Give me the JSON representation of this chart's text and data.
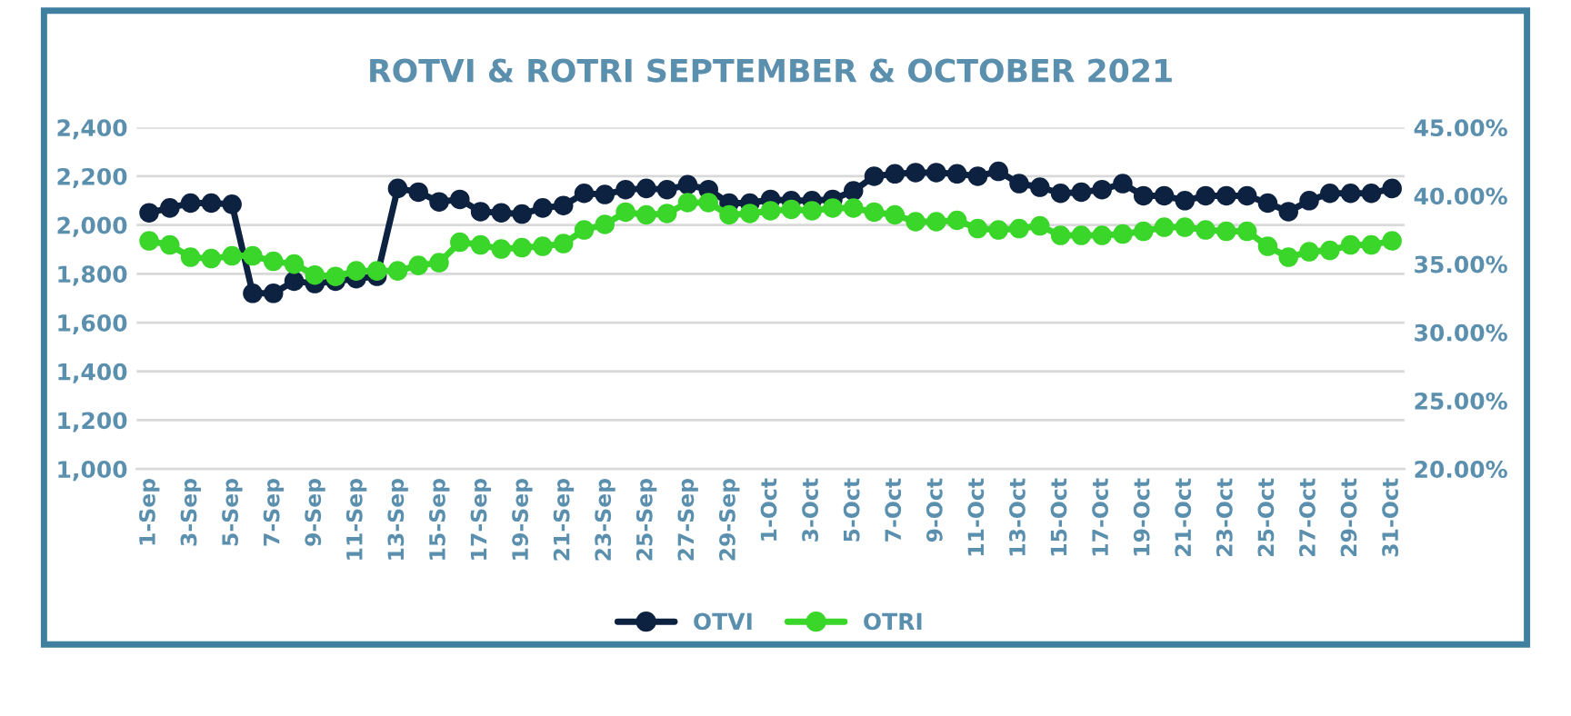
{
  "chart_data": {
    "type": "line",
    "title": "ROTVI & ROTRI SEPTEMBER & OCTOBER 2021",
    "categories": [
      "1-Sep",
      null,
      "3-Sep",
      null,
      "5-Sep",
      null,
      "7-Sep",
      null,
      "9-Sep",
      null,
      "11-Sep",
      null,
      "13-Sep",
      null,
      "15-Sep",
      null,
      "17-Sep",
      null,
      "19-Sep",
      null,
      "21-Sep",
      null,
      "23-Sep",
      null,
      "25-Sep",
      null,
      "27-Sep",
      null,
      "29-Sep",
      null,
      "1-Oct",
      null,
      "3-Oct",
      null,
      "5-Oct",
      null,
      "7-Oct",
      null,
      "9-Oct",
      null,
      "11-Oct",
      null,
      "13-Oct",
      null,
      "15-Oct",
      null,
      "17-Oct",
      null,
      "19-Oct",
      null,
      "21-Oct",
      null,
      "23-Oct",
      null,
      "25-Oct",
      null,
      "27-Oct",
      null,
      "29-Oct",
      null,
      "31-Oct"
    ],
    "series": [
      {
        "name": "OTVI",
        "color": "#0d2240",
        "values": [
          2050,
          2070,
          2090,
          2090,
          2085,
          1720,
          1720,
          1770,
          1760,
          1770,
          1780,
          1790,
          2150,
          2135,
          2095,
          2105,
          2055,
          2050,
          2045,
          2070,
          2080,
          2130,
          2125,
          2145,
          2150,
          2145,
          2165,
          2145,
          2090,
          2090,
          2105,
          2100,
          2100,
          2105,
          2140,
          2200,
          2210,
          2215,
          2215,
          2210,
          2200,
          2220,
          2170,
          2155,
          2130,
          2135,
          2145,
          2170,
          2120,
          2120,
          2100,
          2120,
          2120,
          2120,
          2090,
          2055,
          2100,
          2130,
          2130,
          2130,
          2150
        ]
      },
      {
        "name": "OTRI",
        "color": "#3ad62a",
        "axis": "y2",
        "values": [
          36.7,
          36.4,
          35.5,
          35.4,
          35.6,
          35.6,
          35.2,
          35.0,
          34.2,
          34.1,
          34.5,
          34.5,
          34.5,
          34.9,
          35.1,
          36.6,
          36.4,
          36.1,
          36.2,
          36.3,
          36.5,
          37.5,
          37.9,
          38.8,
          38.6,
          38.7,
          39.5,
          39.5,
          38.6,
          38.7,
          38.9,
          39.0,
          38.9,
          39.1,
          39.1,
          38.8,
          38.6,
          38.1,
          38.1,
          38.2,
          37.6,
          37.5,
          37.6,
          37.8,
          37.1,
          37.1,
          37.1,
          37.2,
          37.4,
          37.7,
          37.7,
          37.5,
          37.4,
          37.4,
          36.3,
          35.5,
          35.9,
          36.0,
          36.4,
          36.4,
          36.7
        ]
      }
    ],
    "ylim": [
      1000,
      2400
    ],
    "yticks": [
      {
        "value": 1000,
        "label": "1,000"
      },
      {
        "value": 1200,
        "label": "1,200"
      },
      {
        "value": 1400,
        "label": "1,400"
      },
      {
        "value": 1600,
        "label": "1,600"
      },
      {
        "value": 1800,
        "label": "1,800"
      },
      {
        "value": 2000,
        "label": "2,000"
      },
      {
        "value": 2200,
        "label": "2,200"
      },
      {
        "value": 2400,
        "label": "2,400"
      }
    ],
    "y2lim": [
      20,
      45
    ],
    "y2ticks": [
      {
        "value": 20,
        "label": "20.00%"
      },
      {
        "value": 25,
        "label": "25.00%"
      },
      {
        "value": 30,
        "label": "30.00%"
      },
      {
        "value": 35,
        "label": "35.00%"
      },
      {
        "value": 40,
        "label": "40.00%"
      },
      {
        "value": 45,
        "label": "45.00%"
      }
    ],
    "grid": "y",
    "legend": "bottom",
    "marker": "circle",
    "line_style": "solid"
  }
}
